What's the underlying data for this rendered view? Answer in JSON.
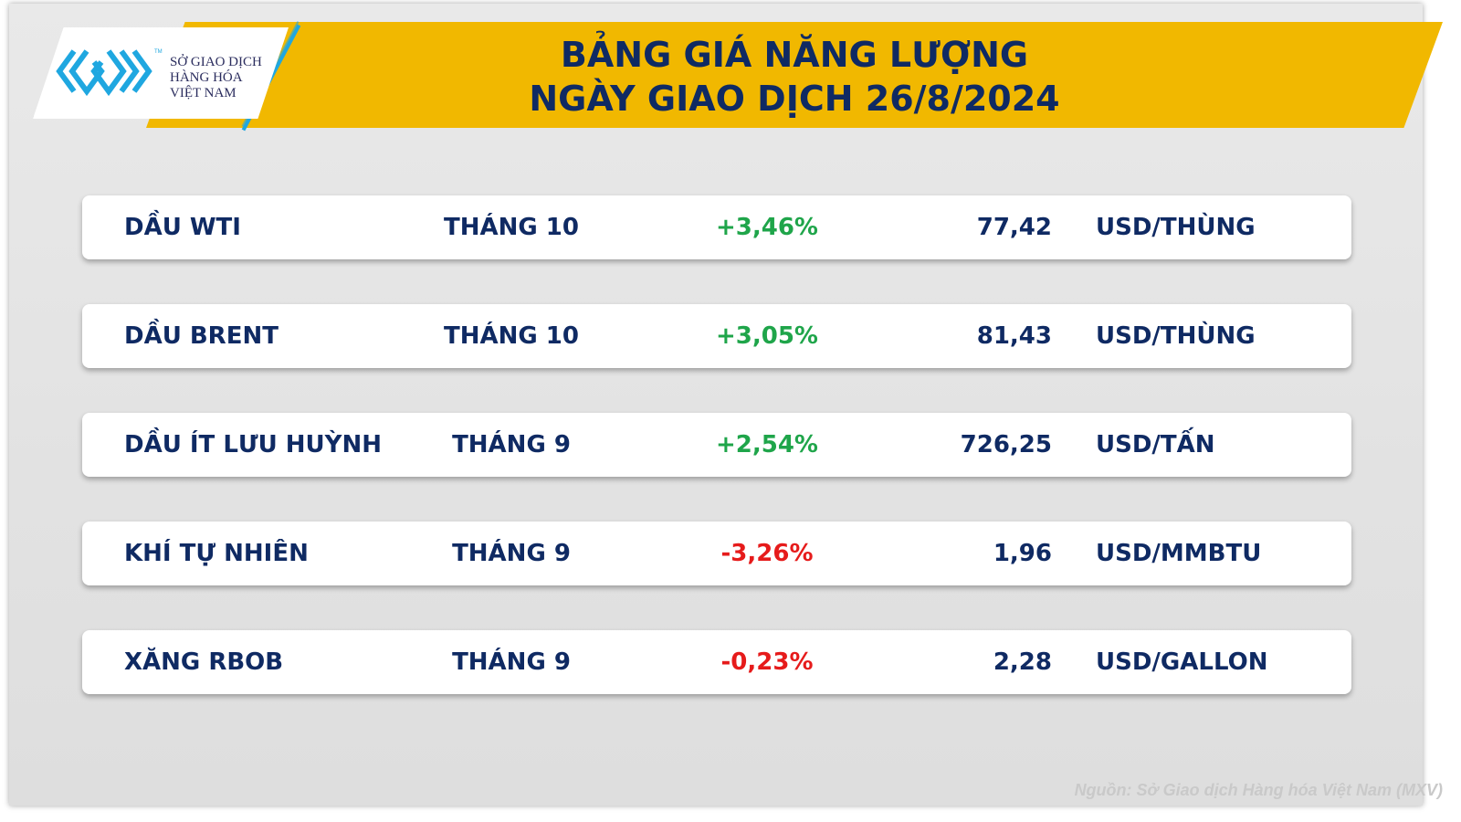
{
  "header": {
    "title_line1": "BẢNG GIÁ NĂNG LƯỢNG",
    "title_line2": "NGÀY GIAO DỊCH 26/8/2024"
  },
  "logo": {
    "line1": "SỞ GIAO DỊCH",
    "line2": "HÀNG HÓA",
    "line3": "VIỆT NAM",
    "tm": "TM"
  },
  "colors": {
    "banner": "#f1b800",
    "title": "#0f2a63",
    "up": "#1fa54a",
    "down": "#e61b1b",
    "logo_blue": "#1fa7e0"
  },
  "rows": [
    {
      "name": "DẦU WTI",
      "month": "THÁNG 10",
      "change": "+3,46%",
      "direction": "up",
      "price": "77,42",
      "unit": "USD/THÙNG"
    },
    {
      "name": "DẦU BRENT",
      "month": "THÁNG 10",
      "change": "+3,05%",
      "direction": "up",
      "price": "81,43",
      "unit": "USD/THÙNG"
    },
    {
      "name": "DẦU ÍT LƯU HUỲNH",
      "month": "THÁNG 9",
      "change": "+2,54%",
      "direction": "up",
      "price": "726,25",
      "unit": "USD/TẤN"
    },
    {
      "name": "KHÍ TỰ NHIÊN",
      "month": "THÁNG 9",
      "change": "-3,26%",
      "direction": "down",
      "price": "1,96",
      "unit": "USD/MMBTU"
    },
    {
      "name": "XĂNG RBOB",
      "month": "THÁNG 9",
      "change": "-0,23%",
      "direction": "down",
      "price": "2,28",
      "unit": "USD/GALLON"
    }
  ],
  "source": "Nguồn: Sở Giao dịch Hàng hóa Việt Nam (MXV)"
}
